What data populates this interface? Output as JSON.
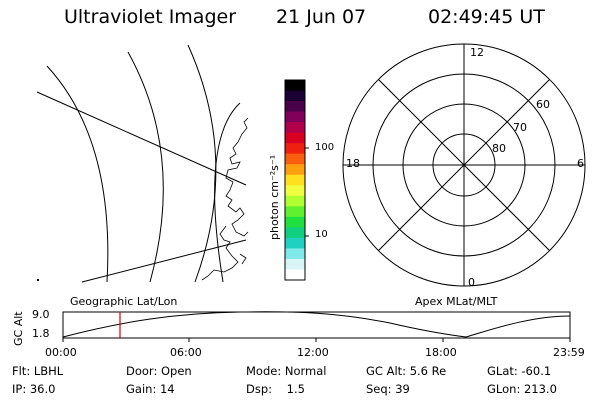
{
  "header": {
    "title": "Ultraviolet Imager",
    "date": "21 Jun 07",
    "time": "02:49:45 UT"
  },
  "colorbar": {
    "unit_label": "photon cm⁻²s⁻¹",
    "ticks": [
      "100",
      "10"
    ],
    "colors": [
      "#000000",
      "#1a0033",
      "#4a0048",
      "#80005a",
      "#b0004a",
      "#d80020",
      "#ee2010",
      "#f86010",
      "#ffa010",
      "#ffe020",
      "#f0ff40",
      "#b0ff30",
      "#60f030",
      "#20e040",
      "#10d080",
      "#20d0c0",
      "#80e8e8",
      "#d8f4f4",
      "#ffffff"
    ]
  },
  "polar": {
    "mlt_labels": {
      "top": "12",
      "bottom": "0",
      "left": "18",
      "right": "6"
    },
    "lat_labels": [
      "60",
      "70",
      "80"
    ]
  },
  "altitude_plot": {
    "left_label": "Geographic Lat/Lon",
    "right_label": "Apex MLat/MLT",
    "ylabel": "GC Alt",
    "yticks": [
      "9.0",
      "1.8"
    ],
    "xticks": [
      "00:00",
      "06:00",
      "12:00",
      "18:00",
      "23:59"
    ],
    "marker_color": "#dd0000"
  },
  "info": {
    "row1": [
      "Flt: LBHL",
      "Door: Open",
      "Mode: Normal",
      "GC Alt: 5.6 Re",
      "GLat: -60.1"
    ],
    "row2": [
      "IP: 36.0",
      "Gain: 14",
      "Dsp:    1.5",
      "Seq: 39",
      "GLon: 213.0"
    ]
  }
}
